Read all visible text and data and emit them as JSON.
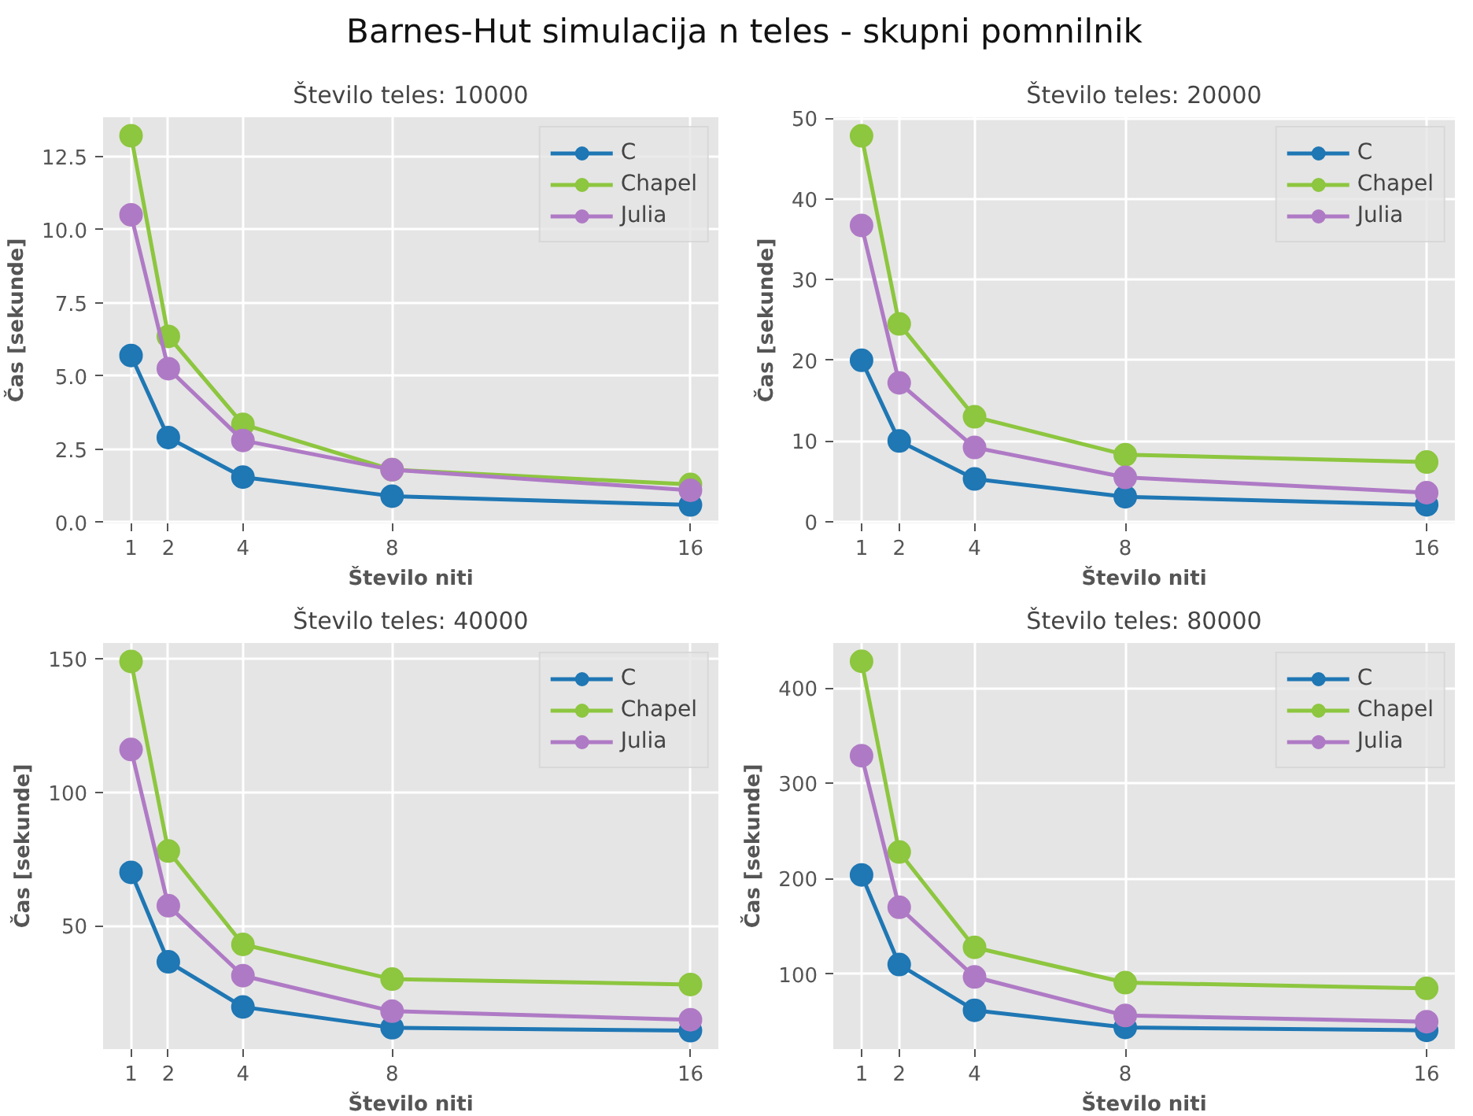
{
  "chart_data": [
    {
      "type": "other",
      "title": "Barnes-Hut simulacija n teles - skupni pomnilnik"
    },
    {
      "type": "line",
      "title": "Število teles: 10000",
      "xlabel": "Število niti",
      "ylabel": "Čas [sekunde]",
      "x": [
        1,
        2,
        4,
        8,
        16
      ],
      "xlim": [
        0.25,
        16.75
      ],
      "xticks": [
        1,
        2,
        4,
        8,
        16
      ],
      "ylim": [
        -0.03,
        13.83
      ],
      "yticks": [
        {
          "value": 0,
          "label": "0.0"
        },
        2.5,
        {
          "value": 5,
          "label": "5.0"
        },
        7.5,
        {
          "value": 10,
          "label": "10.0"
        },
        12.5
      ],
      "grid": true,
      "legend": "top right",
      "marker": "circle",
      "series": [
        {
          "name": "C",
          "color": "#1f77b4",
          "values": [
            5.7,
            2.9,
            1.55,
            0.9,
            0.6
          ]
        },
        {
          "name": "Chapel",
          "color": "#8dc63f",
          "values": [
            13.2,
            6.35,
            3.35,
            1.8,
            1.3
          ]
        },
        {
          "name": "Julia",
          "color": "#af7ac5",
          "values": [
            10.5,
            5.25,
            2.8,
            1.8,
            1.1
          ]
        }
      ]
    },
    {
      "type": "line",
      "title": "Število teles: 20000",
      "xlabel": "Število niti",
      "ylabel": "Čas [sekunde]",
      "x": [
        1,
        2,
        4,
        8,
        16
      ],
      "xlim": [
        0.25,
        16.75
      ],
      "xticks": [
        1,
        2,
        4,
        8,
        16
      ],
      "ylim": [
        -0.2,
        50.1
      ],
      "yticks": [
        0,
        10,
        20,
        30,
        40,
        50
      ],
      "grid": true,
      "legend": "top right",
      "marker": "circle",
      "series": [
        {
          "name": "C",
          "color": "#1f77b4",
          "values": [
            20,
            10,
            5.3,
            3.1,
            2.1
          ]
        },
        {
          "name": "Chapel",
          "color": "#8dc63f",
          "values": [
            47.8,
            24.5,
            13,
            8.3,
            7.4
          ]
        },
        {
          "name": "Julia",
          "color": "#af7ac5",
          "values": [
            36.7,
            17.2,
            9.2,
            5.5,
            3.6
          ]
        }
      ]
    },
    {
      "type": "line",
      "title": "Število teles: 40000",
      "xlabel": "Število niti",
      "ylabel": "Čas [sekunde]",
      "x": [
        1,
        2,
        4,
        8,
        16
      ],
      "xlim": [
        0.25,
        16.75
      ],
      "xticks": [
        1,
        2,
        4,
        8,
        16
      ],
      "ylim": [
        3.8,
        155.9
      ],
      "yticks": [
        50,
        100,
        150
      ],
      "grid": true,
      "legend": "top right",
      "marker": "circle",
      "series": [
        {
          "name": "C",
          "color": "#1f77b4",
          "values": [
            70,
            36.5,
            19.6,
            11.8,
            10.7
          ]
        },
        {
          "name": "Chapel",
          "color": "#8dc63f",
          "values": [
            149,
            78,
            43,
            30,
            28
          ]
        },
        {
          "name": "Julia",
          "color": "#af7ac5",
          "values": [
            116,
            57.5,
            31.3,
            18,
            14.8
          ]
        }
      ]
    },
    {
      "type": "line",
      "title": "Število teles: 80000",
      "xlabel": "Število niti",
      "ylabel": "Čas [sekunde]",
      "x": [
        1,
        2,
        4,
        8,
        16
      ],
      "xlim": [
        0.25,
        16.75
      ],
      "xticks": [
        1,
        2,
        4,
        8,
        16
      ],
      "ylim": [
        21.3,
        447.2
      ],
      "yticks": [
        100,
        200,
        300,
        400
      ],
      "grid": true,
      "legend": "top right",
      "marker": "circle",
      "series": [
        {
          "name": "C",
          "color": "#1f77b4",
          "values": [
            204,
            110,
            62,
            44,
            41
          ]
        },
        {
          "name": "Chapel",
          "color": "#8dc63f",
          "values": [
            428,
            228,
            128,
            91,
            85
          ]
        },
        {
          "name": "Julia",
          "color": "#af7ac5",
          "values": [
            329,
            170,
            97,
            56.5,
            50
          ]
        }
      ]
    }
  ]
}
